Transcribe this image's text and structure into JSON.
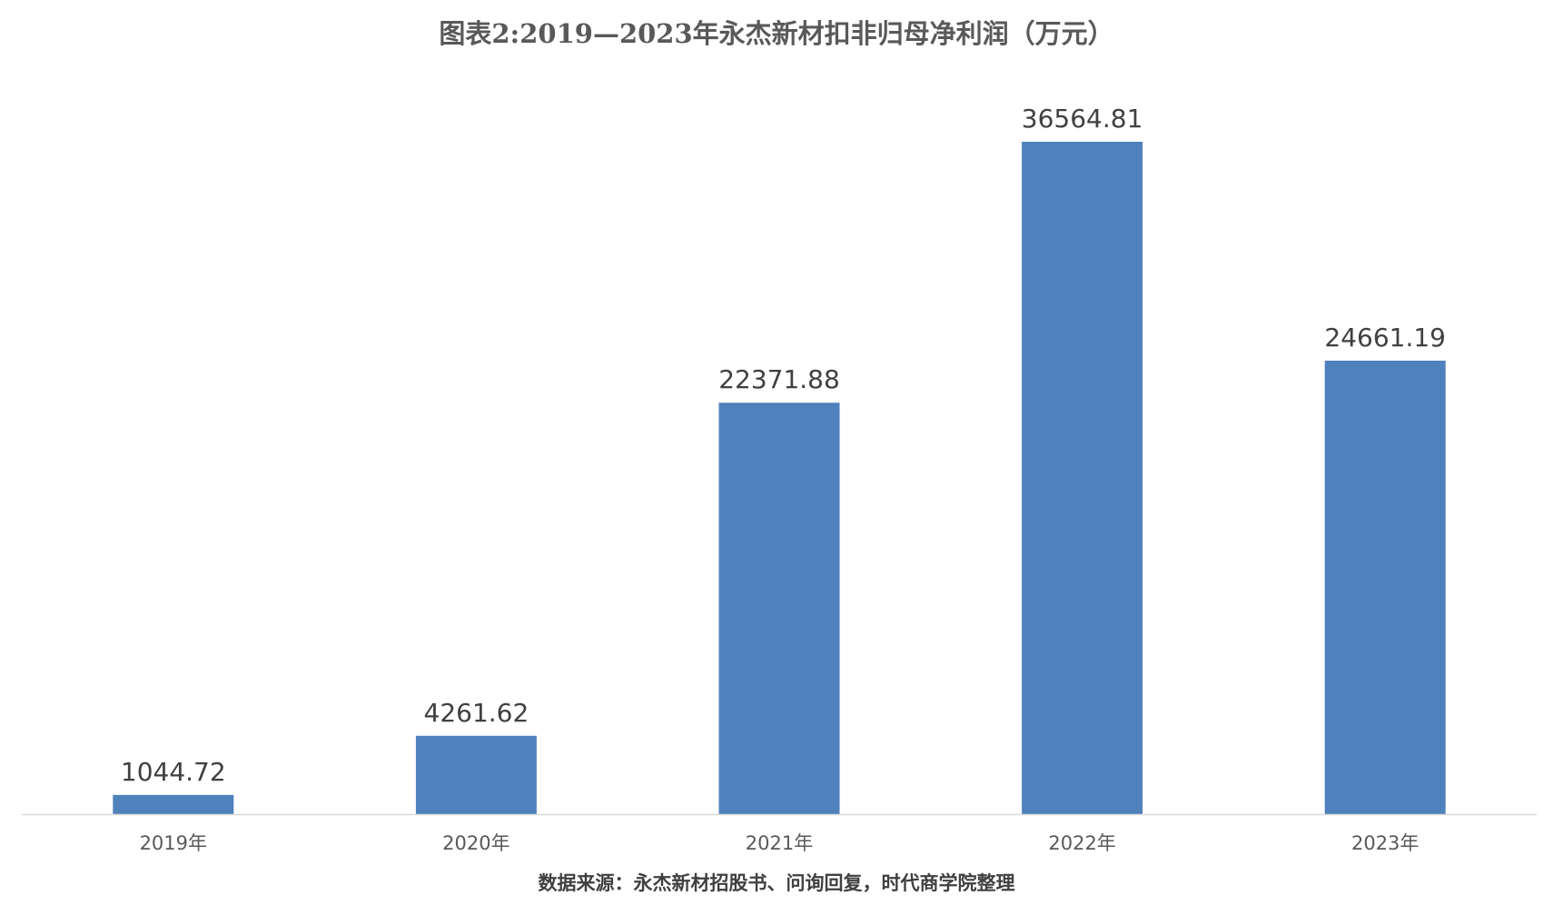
{
  "chart_data": {
    "type": "bar",
    "title": "图表2:2019—2023年永杰新材扣非归母净利润（万元）",
    "categories": [
      "2019年",
      "2020年",
      "2021年",
      "2022年",
      "2023年"
    ],
    "values": [
      1044.72,
      4261.62,
      22371.88,
      36564.81,
      24661.19
    ],
    "value_labels": [
      "1044.72",
      "4261.62",
      "22371.88",
      "36564.81",
      "24661.19"
    ],
    "xlabel": "",
    "ylabel": "",
    "ylim": [
      0,
      36564.81
    ],
    "grid": false,
    "legend": "none",
    "bar_color": "#4F81BD",
    "axis_color": "#D9D9D9"
  },
  "source": "数据来源：永杰新材招股书、问询回复，时代商学院整理"
}
